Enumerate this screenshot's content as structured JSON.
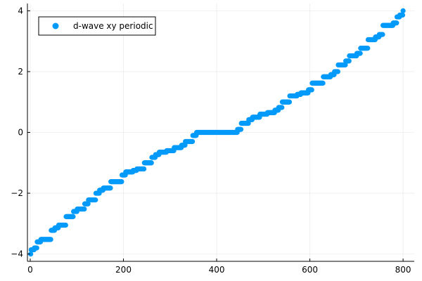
{
  "chart_data": {
    "type": "scatter",
    "title": "",
    "xlabel": "",
    "ylabel": "",
    "xlim": [
      -6,
      824
    ],
    "ylim": [
      -4.24,
      4.24
    ],
    "xticks": [
      0,
      200,
      400,
      600,
      800
    ],
    "yticks": [
      -4,
      -2,
      0,
      2,
      4
    ],
    "xtick_labels": [
      "0",
      "200",
      "400",
      "600",
      "800"
    ],
    "ytick_labels": [
      "−4",
      "−2",
      "0",
      "2",
      "4"
    ],
    "grid": true,
    "legend_position": "top-left",
    "series": [
      {
        "name": "d-wave xy periodic",
        "color": "#009AFA",
        "marker": "circle",
        "n_points": 800,
        "levels": [
          {
            "x0": 1,
            "x1": 1,
            "y": -4.0
          },
          {
            "x0": 2,
            "x1": 8,
            "y": -3.86
          },
          {
            "x0": 9,
            "x1": 14,
            "y": -3.8
          },
          {
            "x0": 15,
            "x1": 22,
            "y": -3.6
          },
          {
            "x0": 23,
            "x1": 44,
            "y": -3.52
          },
          {
            "x0": 45,
            "x1": 52,
            "y": -3.22
          },
          {
            "x0": 53,
            "x1": 60,
            "y": -3.14
          },
          {
            "x0": 61,
            "x1": 76,
            "y": -3.05
          },
          {
            "x0": 77,
            "x1": 92,
            "y": -2.77
          },
          {
            "x0": 93,
            "x1": 100,
            "y": -2.6
          },
          {
            "x0": 101,
            "x1": 116,
            "y": -2.52
          },
          {
            "x0": 117,
            "x1": 124,
            "y": -2.35
          },
          {
            "x0": 125,
            "x1": 140,
            "y": -2.22
          },
          {
            "x0": 141,
            "x1": 148,
            "y": -2.0
          },
          {
            "x0": 149,
            "x1": 156,
            "y": -1.9
          },
          {
            "x0": 157,
            "x1": 172,
            "y": -1.83
          },
          {
            "x0": 173,
            "x1": 196,
            "y": -1.62
          },
          {
            "x0": 197,
            "x1": 204,
            "y": -1.4
          },
          {
            "x0": 205,
            "x1": 220,
            "y": -1.3
          },
          {
            "x0": 221,
            "x1": 228,
            "y": -1.25
          },
          {
            "x0": 229,
            "x1": 244,
            "y": -1.2
          },
          {
            "x0": 245,
            "x1": 260,
            "y": -1.0
          },
          {
            "x0": 261,
            "x1": 268,
            "y": -0.82
          },
          {
            "x0": 269,
            "x1": 276,
            "y": -0.73
          },
          {
            "x0": 277,
            "x1": 292,
            "y": -0.65
          },
          {
            "x0": 293,
            "x1": 308,
            "y": -0.6
          },
          {
            "x0": 309,
            "x1": 324,
            "y": -0.5
          },
          {
            "x0": 325,
            "x1": 332,
            "y": -0.42
          },
          {
            "x0": 333,
            "x1": 348,
            "y": -0.3
          },
          {
            "x0": 349,
            "x1": 356,
            "y": -0.1
          },
          {
            "x0": 357,
            "x1": 444,
            "y": 0.0
          },
          {
            "x0": 445,
            "x1": 452,
            "y": 0.1
          },
          {
            "x0": 453,
            "x1": 468,
            "y": 0.3
          },
          {
            "x0": 469,
            "x1": 476,
            "y": 0.42
          },
          {
            "x0": 477,
            "x1": 492,
            "y": 0.5
          },
          {
            "x0": 493,
            "x1": 508,
            "y": 0.6
          },
          {
            "x0": 509,
            "x1": 524,
            "y": 0.65
          },
          {
            "x0": 525,
            "x1": 532,
            "y": 0.73
          },
          {
            "x0": 533,
            "x1": 540,
            "y": 0.82
          },
          {
            "x0": 541,
            "x1": 556,
            "y": 1.0
          },
          {
            "x0": 557,
            "x1": 572,
            "y": 1.2
          },
          {
            "x0": 573,
            "x1": 580,
            "y": 1.25
          },
          {
            "x0": 581,
            "x1": 596,
            "y": 1.3
          },
          {
            "x0": 597,
            "x1": 604,
            "y": 1.4
          },
          {
            "x0": 605,
            "x1": 628,
            "y": 1.62
          },
          {
            "x0": 629,
            "x1": 644,
            "y": 1.83
          },
          {
            "x0": 645,
            "x1": 652,
            "y": 1.9
          },
          {
            "x0": 653,
            "x1": 660,
            "y": 2.0
          },
          {
            "x0": 661,
            "x1": 676,
            "y": 2.22
          },
          {
            "x0": 677,
            "x1": 684,
            "y": 2.35
          },
          {
            "x0": 685,
            "x1": 700,
            "y": 2.52
          },
          {
            "x0": 701,
            "x1": 708,
            "y": 2.6
          },
          {
            "x0": 709,
            "x1": 724,
            "y": 2.77
          },
          {
            "x0": 725,
            "x1": 740,
            "y": 3.05
          },
          {
            "x0": 741,
            "x1": 748,
            "y": 3.14
          },
          {
            "x0": 749,
            "x1": 756,
            "y": 3.22
          },
          {
            "x0": 757,
            "x1": 778,
            "y": 3.52
          },
          {
            "x0": 779,
            "x1": 786,
            "y": 3.6
          },
          {
            "x0": 787,
            "x1": 792,
            "y": 3.8
          },
          {
            "x0": 793,
            "x1": 799,
            "y": 3.86
          },
          {
            "x0": 800,
            "x1": 800,
            "y": 4.0
          }
        ]
      }
    ],
    "colors": {
      "marker": "#009AFA",
      "grid": "#e6e6e6",
      "axis": "#000000",
      "background": "#ffffff"
    }
  }
}
